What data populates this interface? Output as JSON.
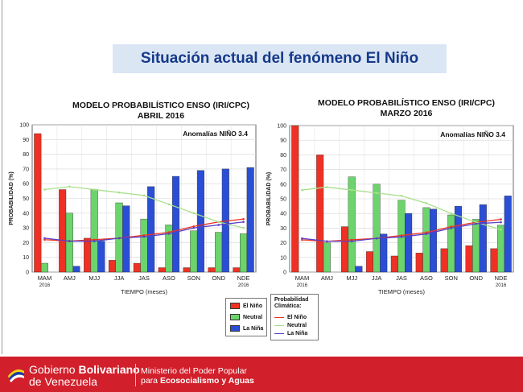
{
  "slide_title": "Situación actual del fenómeno El Niño",
  "chart_data": [
    {
      "type": "bar",
      "title": "MODELO PROBABILÍSTICO ENSO (IRI/CPC)",
      "subtitle": "ABRIL 2016",
      "annotation": "Anomalías NIÑO 3.4",
      "xlabel": "TIEMPO (meses)",
      "ylabel": "PROBABILIDAD (%)",
      "ylim": [
        0,
        100
      ],
      "yticks": [
        "0",
        "10",
        "20",
        "30",
        "40",
        "50",
        "60",
        "70",
        "80",
        "90",
        "100"
      ],
      "categories": [
        "MAM",
        "AMJ",
        "MJJ",
        "JJA",
        "JAS",
        "ASO",
        "SON",
        "OND",
        "NDE"
      ],
      "year_labels": [
        "2016",
        "",
        "",
        "",
        "",
        "",
        "",
        "",
        "2016"
      ],
      "grid": true,
      "series": [
        {
          "name": "El Niño",
          "kind": "bar",
          "color": "#ee3124",
          "values": [
            94,
            56,
            23,
            8,
            6,
            3,
            3,
            3,
            3
          ]
        },
        {
          "name": "Neutral",
          "kind": "bar",
          "color": "#6cd46c",
          "values": [
            6,
            40,
            56,
            47,
            36,
            32,
            28,
            27,
            26
          ]
        },
        {
          "name": "La Niña",
          "kind": "bar",
          "color": "#2a4fd6",
          "values": [
            0,
            4,
            21,
            45,
            58,
            65,
            69,
            70,
            71
          ]
        },
        {
          "name": "El Niño",
          "kind": "line",
          "color": "#ee3124",
          "values": [
            22,
            21,
            22,
            23,
            25,
            27,
            31,
            34,
            36
          ]
        },
        {
          "name": "Neutral",
          "kind": "line",
          "color": "#a8e08a",
          "values": [
            56,
            58,
            56,
            54,
            52,
            46,
            40,
            34,
            30
          ]
        },
        {
          "name": "La Niña",
          "kind": "line",
          "color": "#5a3fc4",
          "values": [
            23,
            21,
            21,
            23,
            24,
            26,
            30,
            32,
            34
          ]
        }
      ]
    },
    {
      "type": "bar",
      "title": "MODELO PROBABILÍSTICO ENSO (IRI/CPC)",
      "subtitle": "MARZO 2016",
      "annotation": "Anomalías NIÑO 3.4",
      "xlabel": "TIEMPO (meses)",
      "ylabel": "PROBABILIDAD (%)",
      "ylim": [
        0,
        100
      ],
      "yticks": [
        "0",
        "10",
        "20",
        "30",
        "40",
        "50",
        "60",
        "70",
        "80",
        "90",
        "100"
      ],
      "categories": [
        "MAM",
        "AMJ",
        "MJJ",
        "JJA",
        "JAS",
        "ASO",
        "SON",
        "OND",
        "NDE"
      ],
      "year_labels": [
        "2016",
        "",
        "",
        "",
        "",
        "",
        "",
        "",
        "2016"
      ],
      "grid": true,
      "series": [
        {
          "name": "El Niño",
          "kind": "bar",
          "color": "#ee3124",
          "values": [
            100,
            80,
            31,
            14,
            11,
            13,
            16,
            18,
            16
          ]
        },
        {
          "name": "Neutral",
          "kind": "bar",
          "color": "#6cd46c",
          "values": [
            0,
            20,
            65,
            60,
            49,
            44,
            39,
            36,
            32
          ]
        },
        {
          "name": "La Niña",
          "kind": "bar",
          "color": "#2a4fd6",
          "values": [
            0,
            0,
            4,
            26,
            40,
            43,
            45,
            46,
            52
          ]
        },
        {
          "name": "El Niño",
          "kind": "line",
          "color": "#ee3124",
          "values": [
            22,
            21,
            22,
            23,
            25,
            27,
            31,
            34,
            36
          ]
        },
        {
          "name": "Neutral",
          "kind": "line",
          "color": "#a8e08a",
          "values": [
            56,
            58,
            56,
            54,
            52,
            47,
            40,
            34,
            29
          ]
        },
        {
          "name": "La Niña",
          "kind": "line",
          "color": "#5a3fc4",
          "values": [
            23,
            21,
            21,
            23,
            24,
            26,
            30,
            33,
            34
          ]
        }
      ]
    }
  ],
  "legend_bars": {
    "items": [
      {
        "label": "El Niño",
        "color": "#ee3124"
      },
      {
        "label": "Neutral",
        "color": "#6cd46c"
      },
      {
        "label": "La Niña",
        "color": "#2a4fd6"
      }
    ]
  },
  "legend_lines": {
    "title_1": "Probabilidad",
    "title_2": "Climática:",
    "items": [
      {
        "label": "El Niño",
        "color": "#ee3124"
      },
      {
        "label": "Neutral",
        "color": "#a8e08a"
      },
      {
        "label": "La Niña",
        "color": "#5a3fc4"
      }
    ]
  },
  "footer": {
    "brand_line1_a": "Gobierno ",
    "brand_line1_b": "Bolivariano",
    "brand_line2": "de Venezuela",
    "ministry_line1": "Ministerio del Poder Popular",
    "ministry_line2_a": "para ",
    "ministry_line2_b": "Ecosocialismo y Aguas"
  }
}
